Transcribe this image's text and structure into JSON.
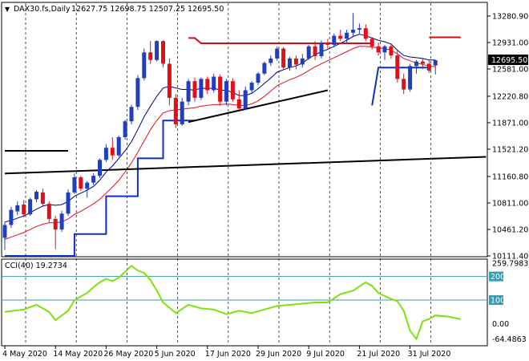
{
  "header": {
    "symbol": "DAX30.fs,Daily",
    "ohlc": "12627.75 12698.75 12507.25 12695.50"
  },
  "colors": {
    "bull": "#1f3fbf",
    "bear": "#e0101a",
    "fast_ma": "#000080",
    "slow_ma": "#e0101a",
    "cci": "#80e010",
    "cci_level": "#3a9ab0",
    "trendline": "#000000",
    "step_red": "#d01010",
    "step_blue": "#1030c0",
    "current_price_bg": "#000000"
  },
  "chart_data": [
    {
      "type": "candlestick",
      "title": "DAX30.fs,Daily",
      "ylim": [
        10111.4,
        13450
      ],
      "y_ticks": [
        "13280.90",
        "12931.00",
        "12581.00",
        "12220.80",
        "11871.00",
        "11521.20",
        "11160.80",
        "10811.00",
        "10461.20",
        "10111.40"
      ],
      "current_price": "12695.50",
      "x_tick_labels": [
        "4 May 2020",
        "14 May 2020",
        "26 May 2020",
        "5 Jun 2020",
        "17 Jun 2020",
        "29 Jun 2020",
        "9 Jul 2020",
        "21 Jul 2020",
        "31 Jul 2020"
      ],
      "x_tick_index": [
        0,
        8,
        16,
        24,
        32,
        40,
        48,
        56,
        64
      ],
      "ohlc": [
        [
          10350,
          10560,
          10190,
          10520
        ],
        [
          10520,
          10760,
          10480,
          10720
        ],
        [
          10700,
          10830,
          10650,
          10780
        ],
        [
          10790,
          10850,
          10620,
          10660
        ],
        [
          10660,
          10880,
          10640,
          10860
        ],
        [
          10860,
          10980,
          10820,
          10960
        ],
        [
          10950,
          11000,
          10760,
          10800
        ],
        [
          10800,
          10830,
          10560,
          10600
        ],
        [
          10600,
          10640,
          10200,
          10460
        ],
        [
          10460,
          10710,
          10430,
          10670
        ],
        [
          10670,
          10990,
          10640,
          10950
        ],
        [
          10950,
          11200,
          10930,
          11150
        ],
        [
          11150,
          11170,
          10970,
          11000
        ],
        [
          11000,
          11100,
          10880,
          11080
        ],
        [
          11080,
          11200,
          11050,
          11170
        ],
        [
          11170,
          11400,
          11140,
          11380
        ],
        [
          11380,
          11590,
          11350,
          11540
        ],
        [
          11540,
          11680,
          11380,
          11440
        ],
        [
          11440,
          11700,
          11420,
          11680
        ],
        [
          11680,
          11910,
          11650,
          11890
        ],
        [
          11890,
          12110,
          11850,
          12080
        ],
        [
          12080,
          12500,
          12040,
          12460
        ],
        [
          12460,
          12850,
          12430,
          12800
        ],
        [
          12800,
          12950,
          12650,
          12700
        ],
        [
          12700,
          12960,
          12680,
          12950
        ],
        [
          12950,
          12960,
          12600,
          12650
        ],
        [
          12650,
          12720,
          12100,
          12200
        ],
        [
          12200,
          12250,
          11800,
          11850
        ],
        [
          11850,
          12200,
          11830,
          12150
        ],
        [
          12150,
          12450,
          12100,
          12420
        ],
        [
          12420,
          12470,
          12150,
          12200
        ],
        [
          12200,
          12470,
          12170,
          12450
        ],
        [
          12450,
          12480,
          12250,
          12300
        ],
        [
          12300,
          12520,
          12270,
          12480
        ],
        [
          12480,
          12510,
          12100,
          12150
        ],
        [
          12150,
          12450,
          12100,
          12420
        ],
        [
          12420,
          12460,
          12150,
          12180
        ],
        [
          12180,
          12300,
          12040,
          12060
        ],
        [
          12060,
          12350,
          12040,
          12300
        ],
        [
          12300,
          12420,
          12250,
          12400
        ],
        [
          12400,
          12540,
          12370,
          12520
        ],
        [
          12520,
          12680,
          12500,
          12660
        ],
        [
          12660,
          12760,
          12620,
          12720
        ],
        [
          12720,
          12880,
          12690,
          12850
        ],
        [
          12850,
          12870,
          12580,
          12600
        ],
        [
          12600,
          12740,
          12560,
          12720
        ],
        [
          12720,
          12760,
          12580,
          12640
        ],
        [
          12640,
          12780,
          12600,
          12720
        ],
        [
          12720,
          12900,
          12700,
          12880
        ],
        [
          12880,
          12950,
          12700,
          12750
        ],
        [
          12750,
          12960,
          12720,
          12920
        ],
        [
          12920,
          12980,
          12850,
          12900
        ],
        [
          12900,
          13050,
          12870,
          13020
        ],
        [
          13020,
          13100,
          12950,
          12980
        ],
        [
          12980,
          13100,
          12930,
          13060
        ],
        [
          13060,
          13320,
          13000,
          13100
        ],
        [
          13100,
          13180,
          13050,
          13120
        ],
        [
          13120,
          13170,
          12950,
          12980
        ],
        [
          12980,
          13000,
          12840,
          12880
        ],
        [
          12880,
          12930,
          12760,
          12800
        ],
        [
          12800,
          12900,
          12700,
          12880
        ],
        [
          12880,
          12920,
          12720,
          12760
        ],
        [
          12760,
          12830,
          12400,
          12450
        ],
        [
          12450,
          12520,
          12250,
          12310
        ],
        [
          12310,
          12650,
          12280,
          12620
        ],
        [
          12620,
          12700,
          12520,
          12680
        ],
        [
          12680,
          12720,
          12580,
          12650
        ],
        [
          12650,
          12700,
          12530,
          12560
        ],
        [
          12627.75,
          12698.75,
          12507.25,
          12695.5
        ]
      ],
      "fast_ma": [
        10560,
        10580,
        10610,
        10640,
        10680,
        10730,
        10770,
        10790,
        10780,
        10790,
        10830,
        10900,
        10940,
        10980,
        11030,
        11110,
        11220,
        11300,
        11400,
        11500,
        11620,
        11780,
        11950,
        12090,
        12220,
        12330,
        12350,
        12330,
        12310,
        12310,
        12300,
        12330,
        12320,
        12330,
        12300,
        12300,
        12270,
        12230,
        12230,
        12260,
        12320,
        12390,
        12460,
        12540,
        12570,
        12600,
        12620,
        12660,
        12720,
        12770,
        12810,
        12840,
        12880,
        12920,
        12960,
        13010,
        13040,
        13020,
        12990,
        12960,
        12940,
        12910,
        12830,
        12760,
        12740,
        12730,
        12720,
        12700,
        12700
      ],
      "slow_ma": [
        10330,
        10360,
        10390,
        10420,
        10460,
        10500,
        10530,
        10550,
        10550,
        10560,
        10600,
        10660,
        10700,
        10750,
        10800,
        10860,
        10940,
        11020,
        11110,
        11220,
        11340,
        11480,
        11630,
        11780,
        11900,
        12000,
        12030,
        12040,
        12050,
        12060,
        12070,
        12090,
        12100,
        12110,
        12110,
        12120,
        12110,
        12100,
        12100,
        12120,
        12160,
        12220,
        12290,
        12360,
        12400,
        12440,
        12470,
        12510,
        12560,
        12610,
        12650,
        12690,
        12730,
        12770,
        12810,
        12850,
        12880,
        12880,
        12870,
        12860,
        12850,
        12830,
        12780,
        12720,
        12690,
        12660,
        12640,
        12620,
        12610
      ],
      "step_blue": [
        [
          0,
          10111.4
        ],
        [
          11,
          10111.4
        ],
        [
          11,
          10400
        ],
        [
          16,
          10400
        ],
        [
          16,
          10900
        ],
        [
          21,
          10900
        ],
        [
          21,
          11400
        ],
        [
          25,
          11400
        ],
        [
          25,
          11900
        ],
        [
          30,
          11900
        ],
        [
          44,
          null
        ],
        [
          58,
          12100
        ],
        [
          59,
          12600
        ],
        [
          67,
          12600
        ]
      ],
      "step_red": [
        [
          29,
          12990
        ],
        [
          30,
          12990
        ],
        [
          31,
          12920
        ],
        [
          58,
          12920
        ]
      ],
      "step_red_2": [
        [
          67,
          13000
        ],
        [
          72,
          13000
        ]
      ],
      "hline_black": [
        [
          0,
          11500
        ],
        [
          10,
          11500
        ]
      ],
      "trend_long": [
        [
          0,
          11200
        ],
        [
          76,
          11420
        ]
      ],
      "trend_short": [
        [
          29,
          11880
        ],
        [
          51,
          12300
        ]
      ]
    },
    {
      "type": "line",
      "title": "CCI(40) 19.2734",
      "ylim": [
        -90,
        270
      ],
      "y_ticks": [
        "259.7983",
        "200",
        "100",
        "0.00",
        "-64.4863"
      ],
      "levels": [
        200,
        100
      ],
      "x_index": [
        0,
        3,
        5,
        7,
        8,
        10,
        11,
        12,
        13,
        14,
        15,
        16,
        17,
        18,
        19,
        20,
        21,
        22,
        23,
        24,
        25,
        27,
        29,
        31,
        33,
        35,
        37,
        39,
        41,
        43,
        45,
        47,
        49,
        51,
        53,
        55,
        57,
        58,
        59,
        61,
        62,
        63,
        64,
        65,
        66,
        67,
        68,
        70,
        72
      ],
      "values": [
        50,
        60,
        80,
        50,
        15,
        55,
        100,
        115,
        130,
        155,
        175,
        190,
        180,
        195,
        220,
        245,
        225,
        215,
        185,
        140,
        90,
        45,
        80,
        65,
        60,
        40,
        55,
        45,
        60,
        75,
        80,
        85,
        90,
        90,
        125,
        140,
        175,
        160,
        130,
        105,
        95,
        55,
        -30,
        -64.4863,
        10,
        20,
        35,
        30,
        19.2734
      ]
    }
  ]
}
